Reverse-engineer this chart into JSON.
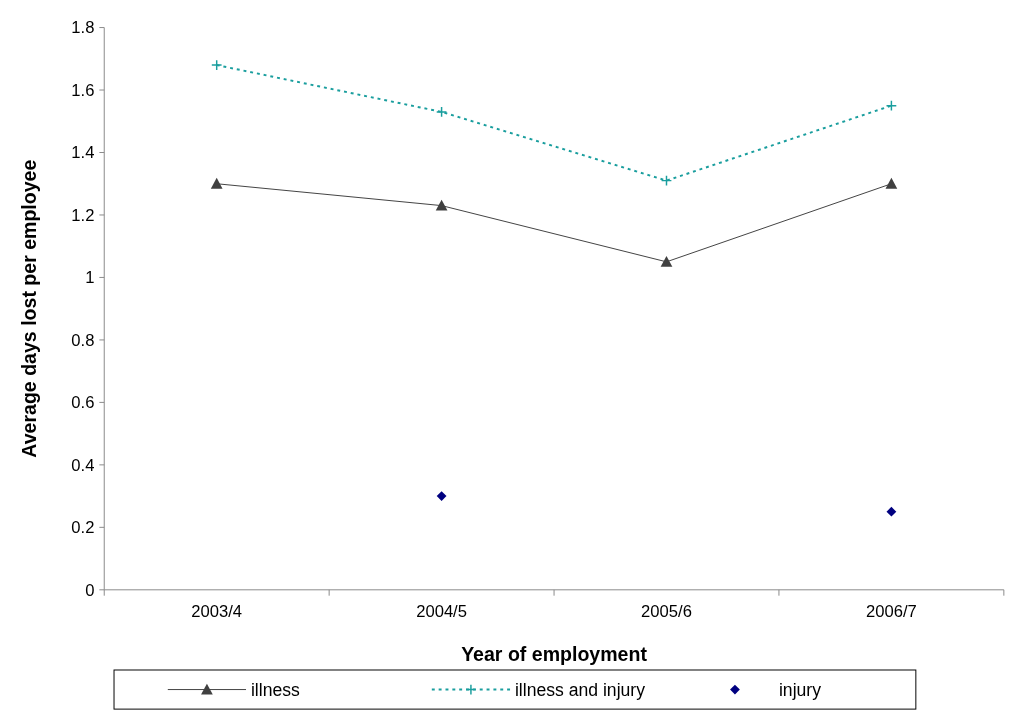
{
  "chart_data": {
    "type": "line",
    "xlabel": "Year of employment",
    "ylabel": "Average days lost per employee",
    "categories": [
      "2003/4",
      "2004/5",
      "2005/6",
      "2006/7"
    ],
    "ylim": [
      0,
      1.8
    ],
    "yticks": [
      0,
      0.2,
      0.4,
      0.6,
      0.8,
      1,
      1.2,
      1.4,
      1.6,
      1.8
    ],
    "grid": false,
    "legend": "bottom",
    "series": [
      {
        "name": "illness",
        "color": "#404040",
        "values": [
          1.3,
          1.23,
          1.05,
          1.3
        ],
        "marker": "triangle",
        "line_style": "solid"
      },
      {
        "name": "illness and injury",
        "color": "#1a9e9e",
        "values": [
          1.68,
          1.53,
          1.31,
          1.55
        ],
        "marker": "cross",
        "line_style": "dotted"
      },
      {
        "name": "injury",
        "type": "scatter",
        "color": "#000080",
        "values": [
          null,
          0.3,
          null,
          0.25
        ],
        "marker": "diamond"
      }
    ]
  }
}
